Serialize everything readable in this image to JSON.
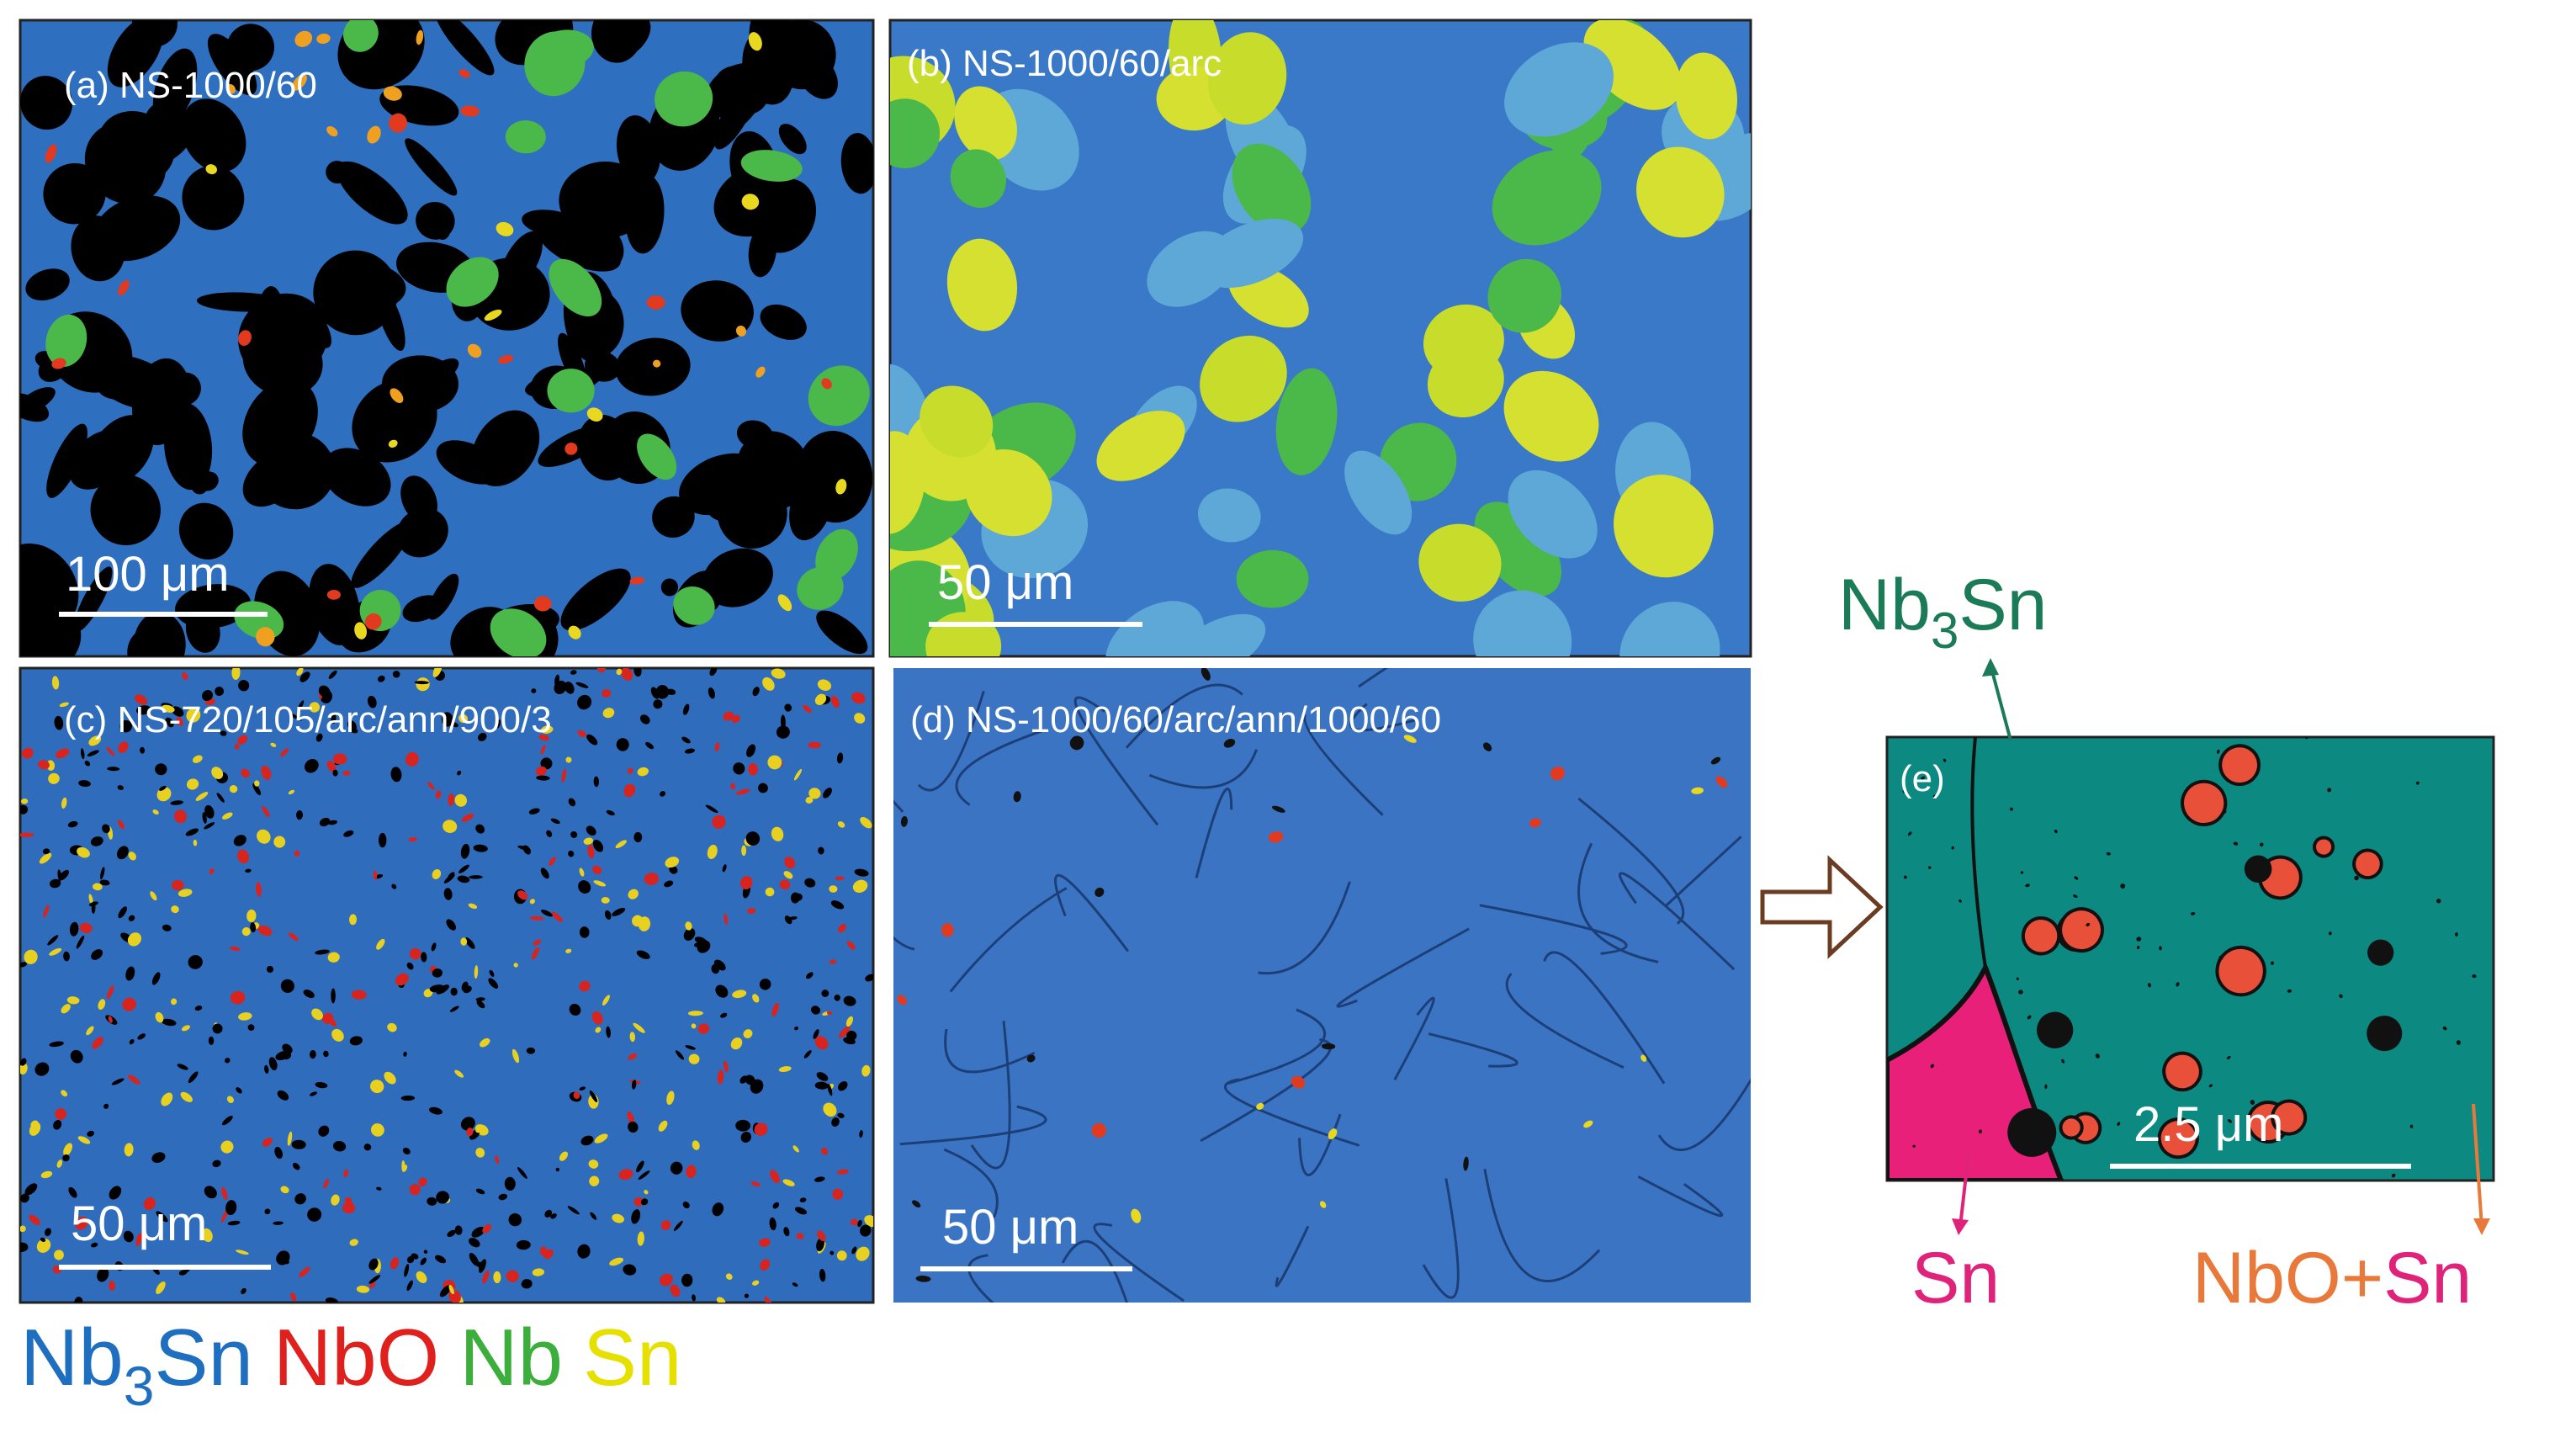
{
  "panels": [
    {
      "label": "(a) NS-1000/60",
      "scale_bar": "100 μm"
    },
    {
      "label": "(b) NS-1000/60/arc",
      "scale_bar": "50 μm"
    },
    {
      "label": "(c) NS-720/105/arc/ann/900/3",
      "scale_bar": "50 μm"
    },
    {
      "label": "(d) NS-1000/60/arc/ann/1000/60",
      "scale_bar": "50 μm"
    },
    {
      "label": "(e)",
      "scale_bar": "2.5 μm"
    }
  ],
  "legend": {
    "nb3sn": [
      "Nb",
      "3",
      "Sn"
    ],
    "nbo": "NbO",
    "nb": "Nb",
    "sn": "Sn"
  },
  "annotations": {
    "nb3sn": [
      "Nb",
      "3",
      "Sn"
    ],
    "sn": "Sn",
    "nbo_sn": [
      "NbO+",
      "Sn"
    ]
  }
}
